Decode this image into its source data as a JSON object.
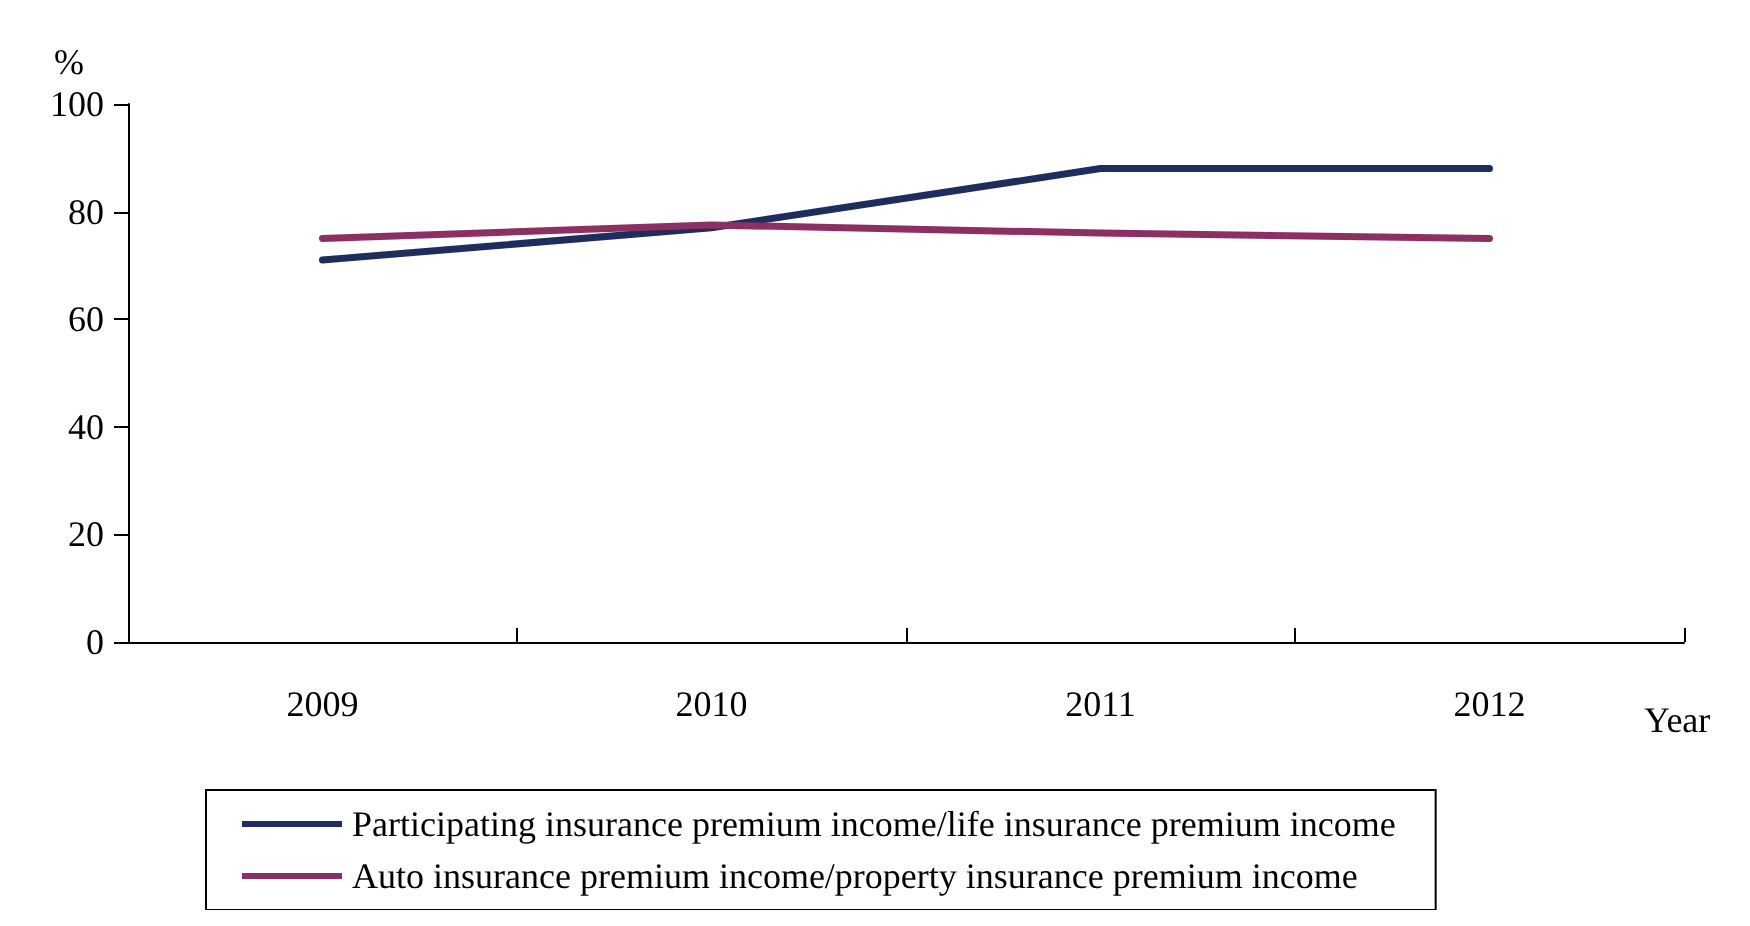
{
  "chart_data": {
    "type": "line",
    "ylabel": "%",
    "xlabel": "Year",
    "categories": [
      "2009",
      "2010",
      "2011",
      "2012"
    ],
    "series": [
      {
        "name": "Participating insurance premium income/life insurance premium income",
        "color": "#1f2c5e",
        "values": [
          71,
          77,
          88,
          88
        ]
      },
      {
        "name": "Auto insurance premium income/property insurance premium income",
        "color": "#8c2f62",
        "values": [
          75,
          77.5,
          76,
          75
        ]
      }
    ],
    "ylim": [
      0,
      100
    ],
    "yticks": [
      0,
      20,
      40,
      60,
      80,
      100
    ],
    "grid": false,
    "legend": "bottom",
    "marker": "none",
    "line_style": "solid"
  }
}
